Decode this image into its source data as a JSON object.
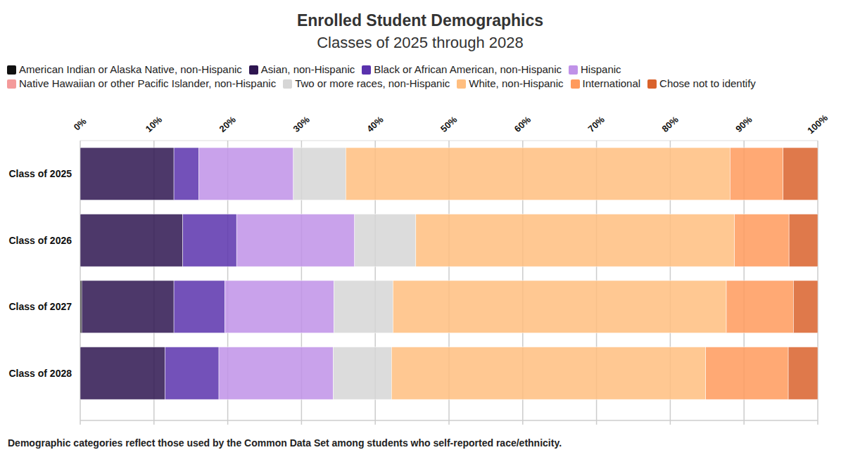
{
  "chart_data": {
    "type": "bar",
    "orientation": "horizontal",
    "stacked": true,
    "grid": true,
    "legend": "top",
    "title": "Enrolled Student Demographics",
    "subtitle": "Classes of 2025 through 2028",
    "annotation": "Demographic categories reflect those used by the Common Data Set among students who self-reported race/ethnicity.",
    "categories": [
      "Class of 2025",
      "Class of 2026",
      "Class of 2027",
      "Class of 2028"
    ],
    "xlim": [
      0,
      100
    ],
    "xticks": [
      {
        "value": 0,
        "label": "0%"
      },
      {
        "value": 10,
        "label": "10%"
      },
      {
        "value": 20,
        "label": "20%"
      },
      {
        "value": 30,
        "label": "30%"
      },
      {
        "value": 40,
        "label": "40%"
      },
      {
        "value": 50,
        "label": "50%"
      },
      {
        "value": 60,
        "label": "60%"
      },
      {
        "value": 70,
        "label": "70%"
      },
      {
        "value": 80,
        "label": "80%"
      },
      {
        "value": 90,
        "label": "90%"
      },
      {
        "value": 100,
        "label": "100%"
      }
    ],
    "series": [
      {
        "name": "American Indian or Alaska Native, non-Hispanic",
        "color": "#111111",
        "values": [
          0,
          0,
          0.2,
          0
        ]
      },
      {
        "name": "Asian, non-Hispanic",
        "color": "#2e1550",
        "values": [
          12.7,
          13.9,
          12.5,
          11.5
        ]
      },
      {
        "name": "Black or African American, non-Hispanic",
        "color": "#5a32ad",
        "values": [
          3.4,
          7.3,
          6.9,
          7.3
        ]
      },
      {
        "name": "Hispanic",
        "color": "#c092e8",
        "values": [
          12.8,
          16.0,
          14.8,
          15.5
        ]
      },
      {
        "name": "Native Hawaiian or other Pacific Islander, non-Hispanic",
        "color": "#f49a9a",
        "values": [
          0,
          0,
          0,
          0
        ]
      },
      {
        "name": "Two or more races, non-Hispanic",
        "color": "#d6d6d6",
        "values": [
          7.1,
          8.3,
          8.0,
          7.9
        ]
      },
      {
        "name": "White, non-Hispanic",
        "color": "#ffbe7f",
        "values": [
          52.1,
          43.2,
          45.2,
          42.6
        ]
      },
      {
        "name": "International",
        "color": "#ff9a5c",
        "values": [
          7.2,
          7.4,
          9.1,
          11.2
        ]
      },
      {
        "name": "Chose not to identify",
        "color": "#d9622b",
        "values": [
          4.7,
          3.9,
          3.3,
          4.0
        ]
      }
    ]
  }
}
